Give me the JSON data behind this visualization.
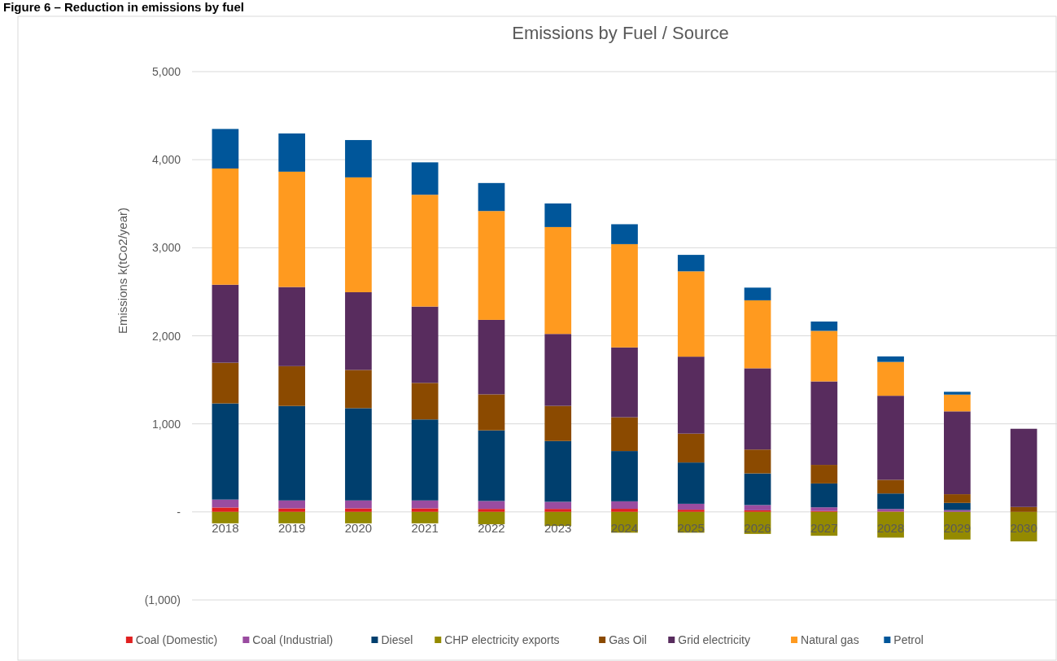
{
  "chart_data": {
    "type": "bar",
    "title": "Emissions by Fuel / Source",
    "ylabel": "Emissions k(tCo2/year)",
    "annotations": [
      "Figure 6 – Reduction in emissions by fuel"
    ],
    "categories": [
      "2018",
      "2019",
      "2020",
      "2021",
      "2022",
      "2023",
      "2024",
      "2025",
      "2026",
      "2027",
      "2028",
      "2029",
      "2030"
    ],
    "stacked": true,
    "grid": "y",
    "legend": "bottom",
    "ylim": [
      -1000,
      5000
    ],
    "yticks": [
      {
        "value": -1000,
        "label": "(1,000)"
      },
      {
        "value": 0,
        "label": "-"
      },
      {
        "value": 1000,
        "label": "1,000"
      },
      {
        "value": 2000,
        "label": "2,000"
      },
      {
        "value": 3000,
        "label": "3,000"
      },
      {
        "value": 4000,
        "label": "4,000"
      },
      {
        "value": 5000,
        "label": "5,000"
      }
    ],
    "series": [
      {
        "name": "Coal (Domestic)",
        "color": "#e02020",
        "values": [
          50,
          40,
          40,
          40,
          34,
          34,
          35,
          25,
          18,
          10,
          5,
          0,
          0
        ]
      },
      {
        "name": "Coal (Industrial)",
        "color": "#9a4ca0",
        "values": [
          90,
          90,
          90,
          90,
          90,
          81,
          85,
          67,
          60,
          42,
          28,
          21,
          0
        ]
      },
      {
        "name": "Diesel",
        "color": "#003f6e",
        "values": [
          1092,
          1073,
          1048,
          920,
          802,
          690,
          571,
          469,
          359,
          271,
          176,
          81,
          0
        ]
      },
      {
        "name": "CHP electricity exports",
        "color": "#948a00",
        "values": [
          -130,
          -130,
          -130,
          -130,
          -140,
          -160,
          -236,
          -236,
          -250,
          -271,
          -292,
          -314,
          -335
        ]
      },
      {
        "name": "Gas Oil",
        "color": "#8b4a00",
        "values": [
          462,
          452,
          434,
          415,
          409,
          399,
          384,
          328,
          271,
          211,
          155,
          99,
          56
        ]
      },
      {
        "name": "Grid electricity",
        "color": "#582c5e",
        "values": [
          886,
          899,
          883,
          867,
          846,
          817,
          793,
          874,
          923,
          948,
          955,
          941,
          888
        ]
      },
      {
        "name": "Natural gas",
        "color": "#ff9a1f",
        "values": [
          1320,
          1310,
          1304,
          1270,
          1236,
          1214,
          1173,
          969,
          772,
          574,
          384,
          190,
          0
        ]
      },
      {
        "name": "Petrol",
        "color": "#00569a",
        "values": [
          449,
          434,
          424,
          368,
          318,
          268,
          226,
          187,
          144,
          106,
          63,
          32,
          0
        ]
      }
    ]
  }
}
